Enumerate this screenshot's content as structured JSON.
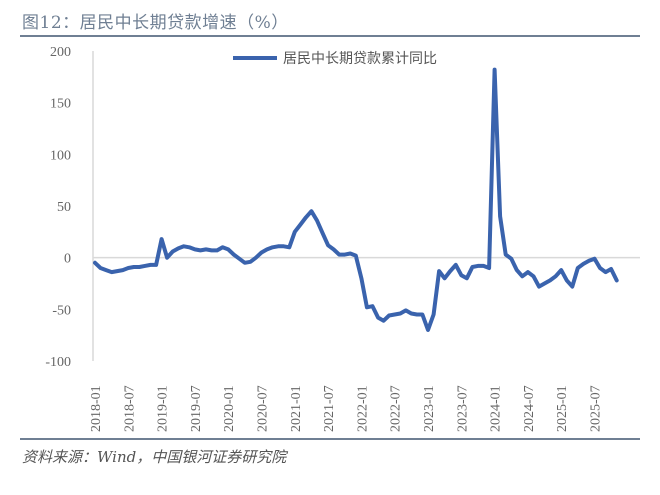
{
  "header": {
    "title": "图12：居民中长期贷款增速（%）"
  },
  "footer": {
    "source": "资料来源：Wind，中国银河证券研究院"
  },
  "colors": {
    "line": "#3a63ad",
    "rule": "#6f7f93",
    "axis": "#d9d9d9"
  },
  "chart_data": {
    "type": "line",
    "title": "居民中长期贷款增速（%）",
    "xlabel": "",
    "ylabel": "%",
    "ylim": [
      -100,
      200
    ],
    "yticks": [
      200,
      150,
      100,
      50,
      0,
      -50,
      -100
    ],
    "xtick_labels": [
      "2018-01",
      "2018-07",
      "2019-01",
      "2019-07",
      "2020-01",
      "2020-07",
      "2021-01",
      "2021-07",
      "2022-01",
      "2022-07",
      "2023-01",
      "2023-07",
      "2024-01",
      "2024-07",
      "2025-01",
      "2025-07"
    ],
    "legend": {
      "position": "top-center",
      "entries": [
        "居民中长期贷款累计同比"
      ]
    },
    "grid": false,
    "x_start": "2018-01",
    "series": [
      {
        "name": "居民中长期贷款累计同比",
        "values": [
          -5,
          -10,
          -12,
          -14,
          -13,
          -12,
          -10,
          -9,
          -9,
          -8,
          -7,
          -7,
          18,
          0,
          6,
          9,
          11,
          10,
          8,
          7,
          8,
          7,
          7,
          10,
          8,
          3,
          -1,
          -5,
          -4,
          0,
          5,
          8,
          10,
          11,
          11,
          10,
          25,
          32,
          39,
          45,
          36,
          24,
          12,
          8,
          3,
          3,
          4,
          2,
          -20,
          -48,
          -47,
          -58,
          -61,
          -56,
          -55,
          -54,
          -51,
          -54,
          -55,
          -55,
          -70,
          -55,
          -13,
          -20,
          -13,
          -7,
          -17,
          -20,
          -9,
          -8,
          -8,
          -10,
          182,
          40,
          3,
          -1,
          -12,
          -18,
          -14,
          -18,
          -28,
          -25,
          -22,
          -18,
          -12,
          -22,
          -28,
          -10,
          -6,
          -3,
          -1,
          -10,
          -14,
          -11,
          -22
        ]
      }
    ]
  }
}
